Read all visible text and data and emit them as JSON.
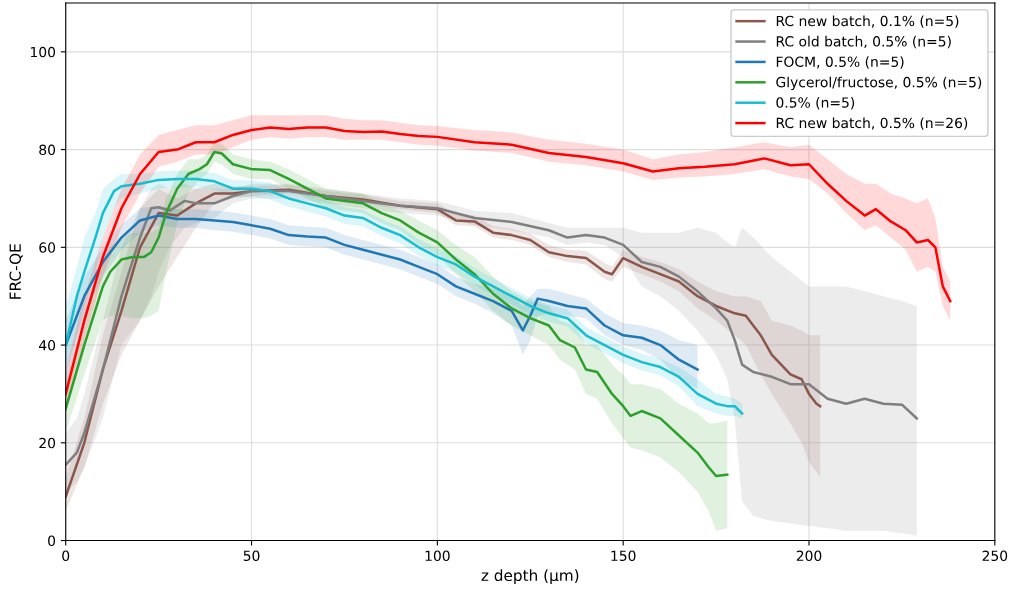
{
  "chart_data": {
    "type": "line",
    "xlabel": "z depth (µm)",
    "ylabel": "FRC-QE",
    "xlim": [
      0,
      250
    ],
    "ylim": [
      0,
      110
    ],
    "xticks": [
      0,
      50,
      100,
      150,
      200,
      250
    ],
    "yticks": [
      0,
      20,
      40,
      60,
      80,
      100
    ],
    "grid": true,
    "legend": "top right",
    "line_style": "solid",
    "marker": "none",
    "series": [
      {
        "name": "RC new batch, 0.1% (n=5)",
        "color": "#8c564b",
        "x": [
          0,
          5,
          10,
          15,
          20,
          25,
          30,
          35,
          40,
          45,
          50,
          60,
          70,
          80,
          90,
          100,
          105,
          110,
          115,
          120,
          125,
          130,
          135,
          140,
          145,
          147,
          150,
          155,
          160,
          165,
          170,
          175,
          180,
          183,
          187,
          190,
          195,
          198,
          200,
          202,
          203
        ],
        "values": [
          9,
          20,
          35,
          47,
          60,
          67,
          66.5,
          69,
          71,
          71,
          71.5,
          71.8,
          70.5,
          69.8,
          68.5,
          67.8,
          65.5,
          65.3,
          63,
          62.5,
          61.5,
          59,
          58.2,
          57.8,
          55,
          54.5,
          57.8,
          56,
          54.5,
          53,
          50,
          48,
          46.5,
          46,
          42,
          38,
          34,
          33,
          30,
          28,
          27.5
        ],
        "lower": [
          6,
          15,
          28,
          38,
          45,
          52,
          58,
          64,
          69,
          70,
          70.5,
          71,
          69.8,
          69,
          67.8,
          67,
          64.5,
          64.3,
          62,
          61.5,
          60.5,
          58,
          57,
          56.5,
          53.5,
          53,
          56,
          54.5,
          53,
          51,
          47.5,
          45,
          42,
          40,
          34,
          30,
          24,
          20,
          16,
          14,
          13
        ],
        "upper": [
          13,
          25,
          42,
          55,
          68,
          72,
          70,
          72,
          73,
          72.5,
          72.5,
          72.8,
          71.5,
          70.8,
          69.5,
          69,
          66.8,
          66.5,
          64.3,
          63.8,
          62.8,
          60.5,
          59.5,
          59.3,
          56.8,
          56,
          59.5,
          58,
          57,
          55.5,
          53,
          51,
          50,
          50,
          49,
          45,
          44,
          43,
          42,
          42,
          42
        ]
      },
      {
        "name": "RC old batch, 0.5% (n=5)",
        "color": "#7f7f7f",
        "x": [
          0,
          3,
          5,
          10,
          15,
          20,
          23,
          25,
          28,
          32,
          35,
          40,
          45,
          50,
          60,
          70,
          80,
          90,
          100,
          110,
          120,
          130,
          135,
          140,
          145,
          150,
          155,
          160,
          165,
          170,
          175,
          178,
          180,
          182,
          185,
          190,
          195,
          200,
          205,
          210,
          215,
          220,
          225,
          229
        ],
        "values": [
          15.5,
          18,
          22,
          35,
          50,
          62,
          68,
          68.2,
          67.5,
          69.5,
          69,
          69,
          70.5,
          71.5,
          71.5,
          70.5,
          69.5,
          68.5,
          68,
          66,
          65.2,
          63.5,
          62,
          62.5,
          62,
          60.5,
          57,
          56,
          54,
          51,
          47.5,
          45,
          41,
          36,
          34.5,
          33.5,
          32,
          32,
          29,
          28,
          29,
          28,
          27.8,
          25
        ],
        "lower": [
          10,
          12,
          15,
          25,
          40,
          45,
          50,
          55,
          60,
          64,
          65,
          66,
          69,
          70,
          70,
          69,
          68,
          67,
          66.5,
          64.5,
          63.5,
          62,
          60.5,
          61,
          60.5,
          58,
          52,
          50,
          47,
          43,
          38,
          33,
          25,
          8,
          5,
          4,
          3.5,
          3,
          2.5,
          2,
          2,
          2,
          1.5,
          1
        ],
        "upper": [
          22,
          25,
          30,
          45,
          60,
          68,
          72,
          73,
          72,
          73,
          72,
          72,
          72,
          73,
          73,
          72,
          71,
          70,
          69.5,
          67.5,
          67,
          65,
          64,
          64,
          64,
          64,
          63,
          63,
          63,
          64,
          63,
          61,
          60,
          64,
          62,
          58,
          55,
          52,
          52,
          52,
          51,
          50,
          49,
          48
        ]
      },
      {
        "name": "FOCM, 0.5% (n=5)",
        "color": "#1f77b4",
        "x": [
          0,
          5,
          10,
          15,
          20,
          25,
          30,
          35,
          40,
          45,
          50,
          55,
          60,
          65,
          70,
          75,
          80,
          90,
          95,
          100,
          105,
          110,
          115,
          120,
          123,
          125,
          127,
          130,
          135,
          140,
          145,
          150,
          155,
          160,
          165,
          170
        ],
        "values": [
          40,
          50,
          57,
          62,
          65.5,
          66.5,
          65.8,
          65.8,
          65.5,
          65.2,
          64.5,
          63.8,
          62.5,
          62.2,
          62,
          60.5,
          59.5,
          57.5,
          56,
          54.5,
          52,
          50.5,
          49,
          47,
          43,
          46,
          49.5,
          49,
          48,
          47.5,
          44,
          42,
          41.5,
          40,
          37,
          35
        ],
        "lower": [
          35,
          46,
          54,
          59.5,
          63,
          64.5,
          64,
          64,
          63.5,
          63.2,
          62.5,
          61.8,
          60.5,
          60.2,
          60,
          58.5,
          57.5,
          55.5,
          54,
          52.5,
          50,
          48.5,
          46.5,
          44,
          38,
          41,
          46,
          46.5,
          46,
          45.5,
          42,
          40,
          39,
          37,
          33,
          31
        ],
        "upper": [
          45,
          54,
          60,
          64.5,
          68,
          68.5,
          67.8,
          67.8,
          67.5,
          67.2,
          66.5,
          65.8,
          64.5,
          64.2,
          64,
          62.5,
          61.5,
          59.5,
          58,
          56.5,
          54,
          52.5,
          51.5,
          50,
          48,
          50,
          51.5,
          51.5,
          50.5,
          49.5,
          46.5,
          44.5,
          44,
          43,
          41,
          40
        ]
      },
      {
        "name": "Glycerol/fructose, 0.5% (n=5)",
        "color": "#2ca02c",
        "x": [
          0,
          5,
          10,
          12,
          15,
          18,
          21,
          23,
          25,
          27,
          30,
          33,
          36,
          38,
          40,
          42,
          45,
          50,
          55,
          60,
          65,
          70,
          80,
          85,
          90,
          95,
          100,
          105,
          110,
          115,
          120,
          125,
          130,
          133,
          137,
          140,
          143,
          147,
          150,
          152,
          155,
          160,
          165,
          170,
          173,
          175,
          178
        ],
        "values": [
          27,
          40,
          52,
          55,
          57.5,
          58,
          58,
          59,
          62,
          67,
          72,
          75,
          76,
          77,
          79.5,
          79.2,
          77,
          76,
          75.8,
          74,
          72,
          70,
          69,
          67,
          65.5,
          63,
          61,
          57.5,
          54.5,
          50.5,
          47.5,
          45.5,
          44,
          41,
          39.5,
          35,
          34.5,
          30,
          27.5,
          25.5,
          26.5,
          25,
          21.5,
          18,
          15,
          13.2,
          13.5
        ],
        "lower": [
          22,
          34,
          45,
          46,
          46,
          45.5,
          45.5,
          46,
          47,
          55,
          65,
          71,
          74,
          75,
          77.5,
          77,
          75,
          74,
          74,
          72,
          70,
          68,
          67,
          65,
          63.5,
          60.5,
          58.5,
          54.5,
          51,
          47,
          44,
          42,
          40,
          37,
          35,
          30,
          29,
          24,
          21,
          19,
          18.5,
          17,
          14,
          10,
          6,
          2,
          2.5
        ],
        "upper": [
          32,
          46,
          57,
          60,
          62,
          63,
          63,
          63,
          64,
          70,
          75,
          78,
          78,
          79,
          81.5,
          81.2,
          79,
          78,
          77.5,
          76,
          74,
          72,
          71,
          69,
          67.5,
          65.5,
          63.5,
          60.5,
          58,
          54,
          51,
          49,
          48,
          45,
          44,
          40,
          40,
          36,
          34,
          32,
          32,
          31,
          28,
          26,
          24,
          24,
          24.5
        ]
      },
      {
        "name": "0.5% (n=5)",
        "color": "#17becf",
        "x": [
          0,
          3,
          5,
          8,
          10,
          13,
          15,
          20,
          25,
          30,
          35,
          40,
          45,
          50,
          55,
          60,
          65,
          70,
          75,
          80,
          85,
          90,
          95,
          100,
          105,
          110,
          115,
          120,
          125,
          130,
          135,
          140,
          145,
          150,
          155,
          160,
          165,
          170,
          175,
          178,
          180,
          182
        ],
        "values": [
          40,
          50,
          55,
          62,
          67,
          71.5,
          72.5,
          73,
          73.8,
          74,
          74,
          73.5,
          72,
          72,
          71.5,
          70,
          69,
          68,
          66.5,
          66,
          64,
          62.5,
          60,
          58,
          56.5,
          54,
          52,
          50,
          48,
          46.5,
          45.5,
          42,
          40,
          38,
          36.5,
          35.5,
          33.5,
          30,
          28,
          27.5,
          27.5,
          26
        ],
        "lower": [
          30,
          42,
          48,
          55,
          62,
          68,
          70,
          71,
          72,
          72.3,
          72.3,
          71.8,
          70.3,
          70.3,
          69.8,
          68.3,
          67.3,
          66.3,
          64.8,
          64.3,
          62.3,
          60.8,
          58.3,
          56.3,
          54.8,
          52.3,
          50.3,
          48.3,
          46.3,
          44.8,
          43.8,
          40.3,
          38.3,
          36.3,
          34.8,
          33.8,
          31.5,
          27.5,
          26,
          25.5,
          25.5,
          25
        ],
        "upper": [
          48,
          56,
          62,
          67,
          72,
          74,
          75,
          75,
          75.5,
          75.7,
          75.7,
          75.2,
          73.7,
          73.7,
          73.2,
          71.7,
          70.7,
          69.7,
          68.2,
          67.7,
          65.7,
          64.2,
          61.7,
          59.7,
          58.2,
          55.7,
          53.7,
          51.7,
          49.7,
          48.2,
          47.2,
          43.7,
          41.7,
          39.7,
          38.2,
          37.2,
          35.5,
          33,
          30,
          29.5,
          29,
          28
        ]
      },
      {
        "name": "RC new batch, 0.5% (n=26)",
        "color": "#ff0000",
        "x": [
          0,
          5,
          10,
          15,
          20,
          25,
          30,
          35,
          40,
          45,
          50,
          55,
          60,
          65,
          70,
          75,
          80,
          85,
          90,
          95,
          100,
          110,
          120,
          130,
          140,
          150,
          158,
          165,
          172,
          180,
          188,
          195,
          200,
          205,
          210,
          215,
          218,
          222,
          226,
          229,
          232,
          234,
          236,
          238
        ],
        "values": [
          30,
          45,
          58,
          68,
          75,
          79.5,
          80,
          81.5,
          81.5,
          83,
          84,
          84.5,
          84.2,
          84.5,
          84.5,
          83.8,
          83.6,
          83.7,
          83.2,
          82.8,
          82.6,
          81.5,
          81,
          79.3,
          78.5,
          77.2,
          75.5,
          76.2,
          76.5,
          77,
          78.2,
          76.8,
          77,
          73,
          69.5,
          66.5,
          67.8,
          65.3,
          63.5,
          61,
          61.5,
          60,
          52,
          49
        ],
        "lower": [
          26,
          41,
          54,
          64,
          71,
          76.5,
          77.5,
          79,
          79,
          80.5,
          82,
          82.5,
          82.2,
          82.5,
          82.5,
          82,
          82,
          82,
          81.5,
          81,
          80.8,
          79.8,
          79.3,
          77.5,
          76.8,
          75.5,
          73.8,
          74.3,
          74.5,
          75,
          76,
          74.5,
          74,
          71,
          67,
          63.5,
          64.5,
          62,
          59.5,
          55,
          56,
          55,
          48,
          45
        ],
        "upper": [
          35,
          50,
          62,
          72,
          79,
          83,
          84,
          85,
          85,
          86,
          87,
          87,
          87,
          87,
          87,
          86.3,
          86,
          86,
          85.5,
          85,
          84.8,
          84,
          83.5,
          82,
          81.2,
          80,
          78,
          79,
          79.5,
          80.5,
          81.5,
          80.5,
          81,
          78,
          75,
          73,
          73,
          71,
          70,
          69,
          70,
          66,
          56,
          53
        ]
      }
    ]
  }
}
